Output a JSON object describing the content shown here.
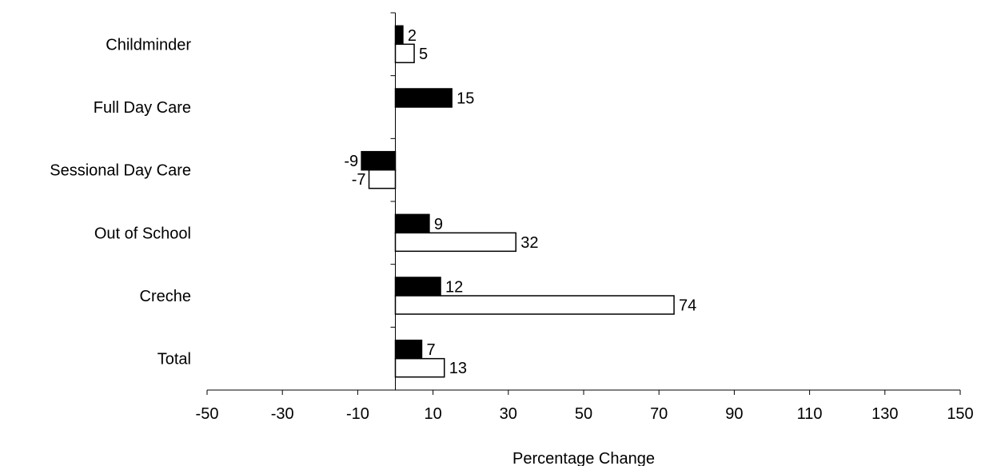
{
  "chart_data": {
    "type": "bar",
    "orientation": "horizontal",
    "title": "",
    "xlabel": "Percentage Change",
    "ylabel": "",
    "xlim": [
      -50,
      150
    ],
    "xticks": [
      -50,
      -30,
      -10,
      10,
      30,
      50,
      70,
      90,
      110,
      130,
      150
    ],
    "categories": [
      "Childminder",
      "Full Day Care",
      "Sessional Day Care",
      "Out of School",
      "Creche",
      "Total"
    ],
    "series": [
      {
        "values": [
          2,
          15,
          -9,
          9,
          12,
          7
        ],
        "color": "#000000"
      },
      {
        "values": [
          5,
          null,
          -7,
          32,
          74,
          13
        ],
        "color": "#ffffff"
      }
    ],
    "grid": false,
    "legend": "none"
  }
}
